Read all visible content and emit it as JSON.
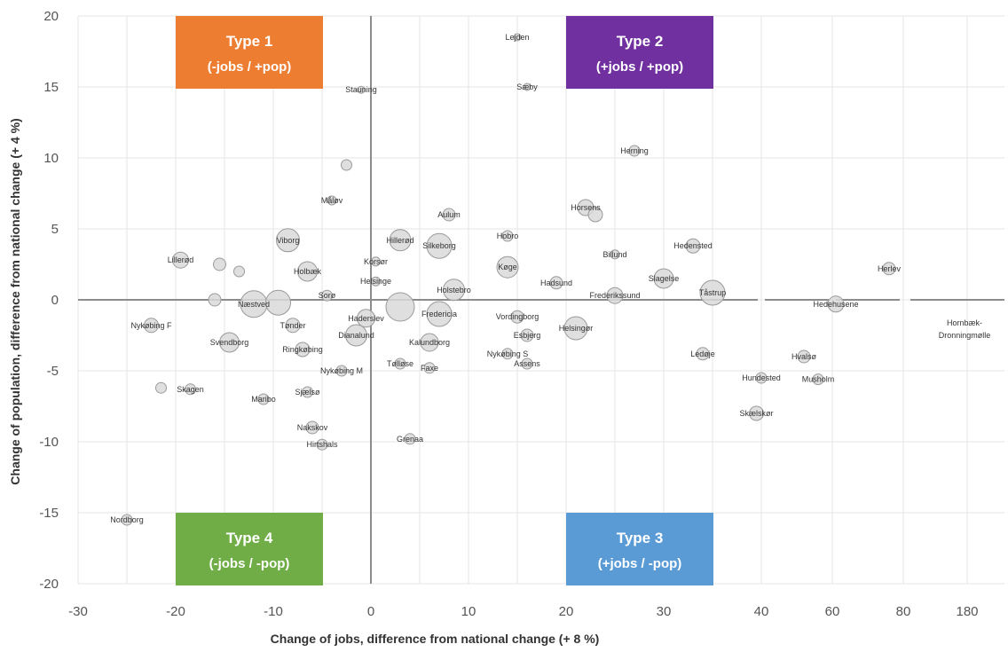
{
  "chart_data": {
    "type": "scatter",
    "bubble": true,
    "xlabel_bold": "Change of jobs,",
    "xlabel_rest": " difference from national change (+ 8 %)",
    "ylabel_bold": "Change of population,",
    "ylabel_rest": " difference from national change (+ 4 %)",
    "xlim": [
      -30,
      190
    ],
    "ylim": [
      -20,
      20
    ],
    "x_ticks": [
      "-30",
      "-20",
      "-10",
      "0",
      "10",
      "20",
      "30",
      "40",
      "60",
      "80",
      "180"
    ],
    "y_ticks": [
      "20",
      "15",
      "10",
      "5",
      "0",
      "-5",
      "-10",
      "-15",
      "-20"
    ],
    "grid": true,
    "quadrants": [
      {
        "title": "Type 1",
        "subtitle": "(-jobs / +pop)",
        "color": "#ed7d31"
      },
      {
        "title": "Type 2",
        "subtitle": "(+jobs / +pop)",
        "color": "#7030a0"
      },
      {
        "title": "Type 3",
        "subtitle": "(+jobs / -pop)",
        "color": "#5b9bd5"
      },
      {
        "title": "Type 4",
        "subtitle": "(-jobs / -pop)",
        "color": "#70ad47"
      }
    ],
    "points": [
      {
        "name": "Lejden",
        "x": 15,
        "y": 18.5,
        "r": 4
      },
      {
        "name": "Stauning",
        "x": -1,
        "y": 14.8,
        "r": 4
      },
      {
        "name": "Sæby",
        "x": 16,
        "y": 15.0,
        "r": 4
      },
      {
        "name": "Herning",
        "x": 27,
        "y": 10.5,
        "r": 6
      },
      {
        "name": "",
        "x": -2.5,
        "y": 9.5,
        "r": 6
      },
      {
        "name": "Måløv",
        "x": -4,
        "y": 7.0,
        "r": 5
      },
      {
        "name": "Aulum",
        "x": 8,
        "y": 6.0,
        "r": 7
      },
      {
        "name": "Horsens",
        "x": 22,
        "y": 6.5,
        "r": 9
      },
      {
        "name": "",
        "x": 23,
        "y": 6.0,
        "r": 8
      },
      {
        "name": "Viborg",
        "x": -8.5,
        "y": 4.2,
        "r": 13
      },
      {
        "name": "Hobro",
        "x": 14,
        "y": 4.5,
        "r": 6
      },
      {
        "name": "Hillerød",
        "x": 3,
        "y": 4.2,
        "r": 12
      },
      {
        "name": "Silkeborg",
        "x": 7,
        "y": 3.8,
        "r": 14
      },
      {
        "name": "Billund",
        "x": 25,
        "y": 3.2,
        "r": 5
      },
      {
        "name": "Hedensted",
        "x": 33,
        "y": 3.8,
        "r": 8
      },
      {
        "name": "Lillerød",
        "x": -19.5,
        "y": 2.8,
        "r": 9
      },
      {
        "name": "",
        "x": -15.5,
        "y": 2.5,
        "r": 7
      },
      {
        "name": "",
        "x": -13.5,
        "y": 2.0,
        "r": 6
      },
      {
        "name": "Holbæk",
        "x": -6.5,
        "y": 2.0,
        "r": 11
      },
      {
        "name": "Korsør",
        "x": 0.5,
        "y": 2.7,
        "r": 5
      },
      {
        "name": "Køge",
        "x": 14,
        "y": 2.3,
        "r": 12
      },
      {
        "name": "Herlev",
        "x": 76,
        "y": 2.2,
        "r": 7
      },
      {
        "name": "Hadsund",
        "x": 19,
        "y": 1.2,
        "r": 7
      },
      {
        "name": "Slagelse",
        "x": 30,
        "y": 1.5,
        "r": 11
      },
      {
        "name": "Helsinge",
        "x": 0.5,
        "y": 1.3,
        "r": 5
      },
      {
        "name": "Holstebro",
        "x": 8.5,
        "y": 0.7,
        "r": 12
      },
      {
        "name": "Tåstrup",
        "x": 35,
        "y": 0.5,
        "r": 14
      },
      {
        "name": "Frederikssund",
        "x": 25,
        "y": 0.3,
        "r": 9
      },
      {
        "name": "Sorø",
        "x": -4.5,
        "y": 0.3,
        "r": 6
      },
      {
        "name": "",
        "x": -16,
        "y": 0.0,
        "r": 7
      },
      {
        "name": "Næstved",
        "x": -12,
        "y": -0.3,
        "r": 15
      },
      {
        "name": "",
        "x": -9.5,
        "y": -0.2,
        "r": 14
      },
      {
        "name": "",
        "x": 3,
        "y": -0.5,
        "r": 16
      },
      {
        "name": "Hedehusene",
        "x": 61,
        "y": -0.3,
        "r": 9
      },
      {
        "name": "Fredericia",
        "x": 7,
        "y": -1.0,
        "r": 14
      },
      {
        "name": "Nykøbing F",
        "x": -22.5,
        "y": -1.8,
        "r": 8
      },
      {
        "name": "Haderslev",
        "x": -0.5,
        "y": -1.3,
        "r": 10
      },
      {
        "name": "Vordingborg",
        "x": 15,
        "y": -1.2,
        "r": 7
      },
      {
        "name": "Helsingør",
        "x": 21,
        "y": -2.0,
        "r": 13
      },
      {
        "name": "Tønder",
        "x": -8,
        "y": -1.8,
        "r": 8
      },
      {
        "name": "Svendborg",
        "x": -14.5,
        "y": -3.0,
        "r": 11
      },
      {
        "name": "Ringkøbing",
        "x": -7,
        "y": -3.5,
        "r": 8
      },
      {
        "name": "Dianalund",
        "x": -1.5,
        "y": -2.5,
        "r": 12
      },
      {
        "name": "Kalundborg",
        "x": 6,
        "y": -3.0,
        "r": 10
      },
      {
        "name": "Esbjerg",
        "x": 16,
        "y": -2.5,
        "r": 7
      },
      {
        "name": "Ledøje",
        "x": 34,
        "y": -3.8,
        "r": 7
      },
      {
        "name": "Nykøbing S",
        "x": 14,
        "y": -3.8,
        "r": 6
      },
      {
        "name": "Nykøbing M",
        "x": -3,
        "y": -5.0,
        "r": 6
      },
      {
        "name": "Tølløse",
        "x": 3,
        "y": -4.5,
        "r": 6
      },
      {
        "name": "Faxe",
        "x": 6,
        "y": -4.8,
        "r": 6
      },
      {
        "name": "Assens",
        "x": 16,
        "y": -4.5,
        "r": 6
      },
      {
        "name": "Hvalsø",
        "x": 52,
        "y": -4.0,
        "r": 7
      },
      {
        "name": "Sjælsø",
        "x": -6.5,
        "y": -6.5,
        "r": 6
      },
      {
        "name": "Skagen",
        "x": -18.5,
        "y": -6.3,
        "r": 6
      },
      {
        "name": "",
        "x": -21.5,
        "y": -6.2,
        "r": 6
      },
      {
        "name": "Maribo",
        "x": -11,
        "y": -7.0,
        "r": 6
      },
      {
        "name": "Hundested",
        "x": 40,
        "y": -5.5,
        "r": 6
      },
      {
        "name": "Musholm",
        "x": 56,
        "y": -5.6,
        "r": 6
      },
      {
        "name": "Skælskør",
        "x": 39.5,
        "y": -8.0,
        "r": 8
      },
      {
        "name": "Nakskov",
        "x": -6,
        "y": -9.0,
        "r": 7
      },
      {
        "name": "Hirtshals",
        "x": -5,
        "y": -10.2,
        "r": 6
      },
      {
        "name": "Grenaa",
        "x": 4,
        "y": -9.8,
        "r": 6
      },
      {
        "name": "Nordborg",
        "x": -25,
        "y": -15.5,
        "r": 6
      }
    ],
    "outside_label": "Hornbæk-Dronningmølle",
    "outside_label_lines": [
      "Hornbæk-",
      "Dronningmølle"
    ]
  }
}
